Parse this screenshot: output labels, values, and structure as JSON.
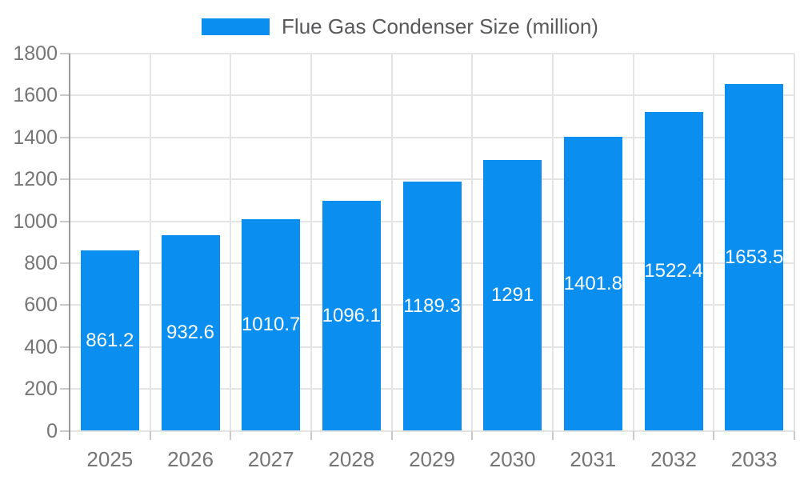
{
  "chart_data": {
    "type": "bar",
    "title": "Flue Gas Condenser Size (million)",
    "legend_position": "top",
    "categories": [
      "2025",
      "2026",
      "2027",
      "2028",
      "2029",
      "2030",
      "2031",
      "2032",
      "2033"
    ],
    "values": [
      861.2,
      932.6,
      1010.7,
      1096.1,
      1189.3,
      1291,
      1401.8,
      1522.4,
      1653.5
    ],
    "value_labels": [
      "861.2",
      "932.6",
      "1010.7",
      "1096.1",
      "1189.3",
      "1291",
      "1401.8",
      "1522.4",
      "1653.5"
    ],
    "ylim": [
      0,
      1800
    ],
    "yticks": [
      0,
      200,
      400,
      600,
      800,
      1000,
      1200,
      1400,
      1600,
      1800
    ],
    "grid": true,
    "colors": {
      "bar": "#0a8ff0",
      "value_label": "#ffffff",
      "axis_label": "#757575",
      "legend_text": "#58595b",
      "gridline": "#e4e4e4",
      "tick": "#c9c9c9",
      "axis_line": "#9a9a9a",
      "background": "#ffffff"
    }
  }
}
